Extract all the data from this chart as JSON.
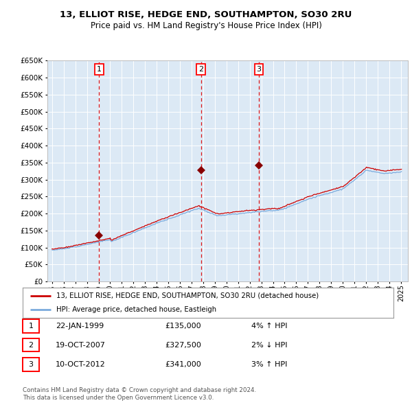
{
  "title": "13, ELLIOT RISE, HEDGE END, SOUTHAMPTON, SO30 2RU",
  "subtitle": "Price paid vs. HM Land Registry's House Price Index (HPI)",
  "background_color": "#ffffff",
  "plot_bg_color": "#dce9f5",
  "grid_color": "#ffffff",
  "hpi_line_color": "#7aaadd",
  "price_line_color": "#cc0000",
  "sale_marker_color": "#880000",
  "vline_color": "#dd0000",
  "y_ticks": [
    0,
    50000,
    100000,
    150000,
    200000,
    250000,
    300000,
    350000,
    400000,
    450000,
    500000,
    550000,
    600000,
    650000
  ],
  "sales": [
    {
      "date_num": 1999.05,
      "price": 135000,
      "label": "1"
    },
    {
      "date_num": 2007.8,
      "price": 327500,
      "label": "2"
    },
    {
      "date_num": 2012.78,
      "price": 341000,
      "label": "3"
    }
  ],
  "sale_table": [
    {
      "num": "1",
      "date": "22-JAN-1999",
      "price": "£135,000",
      "change": "4% ↑ HPI"
    },
    {
      "num": "2",
      "date": "19-OCT-2007",
      "price": "£327,500",
      "change": "2% ↓ HPI"
    },
    {
      "num": "3",
      "date": "10-OCT-2012",
      "price": "£341,000",
      "change": "3% ↑ HPI"
    }
  ],
  "legend_line1": "13, ELLIOT RISE, HEDGE END, SOUTHAMPTON, SO30 2RU (detached house)",
  "legend_line2": "HPI: Average price, detached house, Eastleigh",
  "footnote1": "Contains HM Land Registry data © Crown copyright and database right 2024.",
  "footnote2": "This data is licensed under the Open Government Licence v3.0."
}
